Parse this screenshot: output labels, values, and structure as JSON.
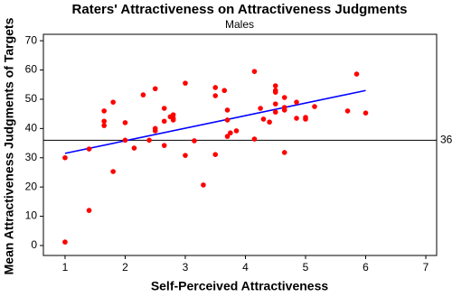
{
  "chart_data": {
    "type": "scatter",
    "title": "Raters' Attractiveness on Attractiveness Judgments",
    "subtitle": "Males",
    "x_label": "Self-Perceived Attractiveness",
    "y_label": "Mean Attractiveness Judgments of Targets",
    "x": [
      1.0,
      1.0,
      1.4,
      1.4,
      1.65,
      1.65,
      1.65,
      1.8,
      1.8,
      2.0,
      2.0,
      2.15,
      2.3,
      2.4,
      2.5,
      2.5,
      2.5,
      2.65,
      2.65,
      2.65,
      2.75,
      2.8,
      2.8,
      2.8,
      3.0,
      3.0,
      3.15,
      3.3,
      3.5,
      3.5,
      3.5,
      3.65,
      3.7,
      3.7,
      3.7,
      3.75,
      3.85,
      4.15,
      4.15,
      4.25,
      4.3,
      4.4,
      4.5,
      4.5,
      4.5,
      4.5,
      4.5,
      4.65,
      4.65,
      4.65,
      4.65,
      4.85,
      4.85,
      5.0,
      5.0,
      5.15,
      5.7,
      5.85,
      6.0
    ],
    "values": [
      30,
      1.2,
      33,
      12,
      46,
      42.5,
      41,
      49,
      25.3,
      42,
      36,
      33.3,
      51.5,
      36,
      53.6,
      40,
      39.2,
      46.9,
      42.5,
      34.2,
      44,
      43.5,
      44.7,
      42.9,
      55.5,
      30.8,
      35.8,
      20.7,
      54,
      51.2,
      31.1,
      53,
      46.3,
      42.9,
      37.3,
      38.5,
      39.2,
      59.5,
      36.4,
      46.9,
      43.2,
      42.2,
      54.6,
      53,
      52.4,
      48.4,
      45.6,
      50.6,
      47.2,
      46.3,
      31.8,
      49,
      43.5,
      43.8,
      43.2,
      47.5,
      46,
      58.6,
      45.3
    ],
    "color": "#ff0000",
    "regression": {
      "x": [
        1,
        6
      ],
      "values": [
        31.5,
        53
      ],
      "color": "#0000ff"
    },
    "reference_line": {
      "value": 36,
      "color": "#000000"
    },
    "xlim": [
      0.64,
      7.18
    ],
    "ylim": [
      -3.4,
      72.2
    ],
    "xticks": [
      1,
      2,
      3,
      4,
      5,
      6,
      7
    ],
    "yticks": [
      0,
      10,
      20,
      30,
      40,
      50,
      60,
      70
    ]
  }
}
